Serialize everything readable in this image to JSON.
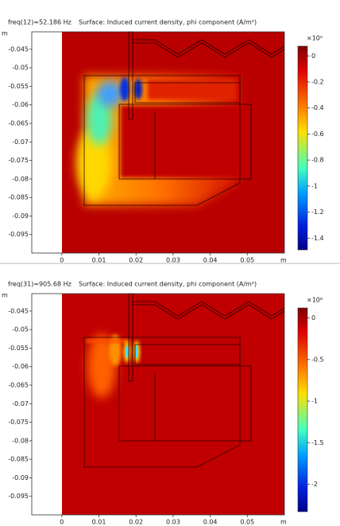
{
  "chart_data": [
    {
      "type": "surface",
      "label": "freq(12)=52.186 Hz",
      "title": "Surface: Induced current density, phi component (A/m²)",
      "x_unit": "m",
      "y_unit": "m",
      "xlim": [
        -0.0081,
        0.06
      ],
      "ylim": [
        -0.1,
        -0.0403
      ],
      "xticks": [
        0,
        0.01,
        0.02,
        0.03,
        0.04,
        0.05
      ],
      "yticks": [
        -0.045,
        -0.05,
        -0.055,
        -0.06,
        -0.065,
        -0.07,
        -0.075,
        -0.08,
        -0.085,
        -0.09,
        -0.095
      ],
      "colorbar_multiplier": "×10⁵",
      "clim": [
        -1.49,
        0.075
      ],
      "cticks": [
        0,
        -0.2,
        -0.4,
        -0.6,
        -0.8,
        -1,
        -1.2,
        -1.4
      ]
    },
    {
      "type": "surface",
      "label": "freq(31)=905.68 Hz",
      "title": "Surface: Induced current density, phi component (A/m²)",
      "x_unit": "m",
      "y_unit": "m",
      "xlim": [
        -0.0081,
        0.06
      ],
      "ylim": [
        -0.1,
        -0.0403
      ],
      "xticks": [
        0,
        0.01,
        0.02,
        0.03,
        0.04,
        0.05
      ],
      "yticks": [
        -0.045,
        -0.05,
        -0.055,
        -0.06,
        -0.065,
        -0.07,
        -0.075,
        -0.08,
        -0.085,
        -0.09,
        -0.095
      ],
      "colorbar_multiplier": "×10⁶",
      "clim": [
        -2.33,
        0.12
      ],
      "cticks": [
        0,
        -0.5,
        -1,
        -1.5,
        -2
      ]
    }
  ]
}
